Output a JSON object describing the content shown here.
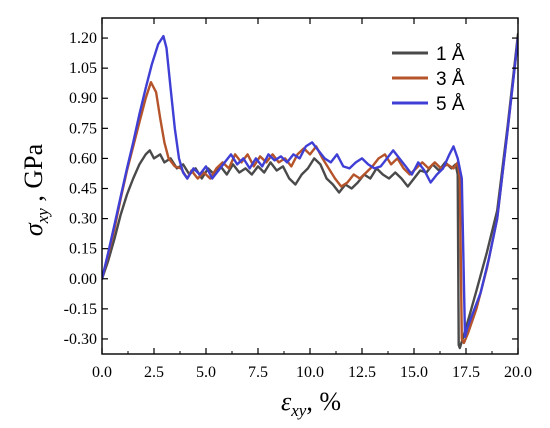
{
  "chart_data": {
    "type": "line",
    "xlabel_symbol": "ε",
    "xlabel_sub": "xy",
    "xlabel_rest": ", %",
    "ylabel_symbol": "σ",
    "ylabel_sub": "xy",
    "ylabel_rest": " ,  GPa",
    "xlim": [
      0,
      20
    ],
    "ylim": [
      -0.375,
      1.3
    ],
    "xticks": [
      0,
      2.5,
      5,
      7.5,
      10,
      12.5,
      15,
      17.5,
      20
    ],
    "xtick_labels": [
      "0.0",
      "2.5",
      "5.0",
      "7.5",
      "10.0",
      "12.5",
      "15.0",
      "17.5",
      "20.0"
    ],
    "yticks": [
      -0.3,
      -0.15,
      0,
      0.15,
      0.3,
      0.45,
      0.6,
      0.75,
      0.9,
      1.05,
      1.2
    ],
    "ytick_labels": [
      "-0.30",
      "-0.15",
      "0.00",
      "0.15",
      "0.30",
      "0.45",
      "0.60",
      "0.75",
      "0.90",
      "1.05",
      "1.20"
    ],
    "legend_position": "top-right",
    "series": [
      {
        "name": "1 Å",
        "color": "#4a4a4a",
        "points": [
          [
            0,
            0
          ],
          [
            0.3,
            0.09
          ],
          [
            0.6,
            0.2
          ],
          [
            0.9,
            0.32
          ],
          [
            1.2,
            0.42
          ],
          [
            1.5,
            0.5
          ],
          [
            1.8,
            0.57
          ],
          [
            2.1,
            0.62
          ],
          [
            2.3,
            0.64
          ],
          [
            2.5,
            0.6
          ],
          [
            2.8,
            0.62
          ],
          [
            3.0,
            0.58
          ],
          [
            3.3,
            0.6
          ],
          [
            3.6,
            0.55
          ],
          [
            3.9,
            0.57
          ],
          [
            4.2,
            0.52
          ],
          [
            4.5,
            0.55
          ],
          [
            4.8,
            0.5
          ],
          [
            5.1,
            0.55
          ],
          [
            5.4,
            0.52
          ],
          [
            5.7,
            0.56
          ],
          [
            6.0,
            0.52
          ],
          [
            6.3,
            0.57
          ],
          [
            6.6,
            0.53
          ],
          [
            6.9,
            0.55
          ],
          [
            7.2,
            0.52
          ],
          [
            7.5,
            0.56
          ],
          [
            7.8,
            0.53
          ],
          [
            8.1,
            0.58
          ],
          [
            8.4,
            0.54
          ],
          [
            8.7,
            0.56
          ],
          [
            9.0,
            0.5
          ],
          [
            9.3,
            0.47
          ],
          [
            9.6,
            0.52
          ],
          [
            9.9,
            0.55
          ],
          [
            10.2,
            0.6
          ],
          [
            10.5,
            0.57
          ],
          [
            10.8,
            0.5
          ],
          [
            11.1,
            0.47
          ],
          [
            11.4,
            0.43
          ],
          [
            11.7,
            0.47
          ],
          [
            12.0,
            0.45
          ],
          [
            12.3,
            0.48
          ],
          [
            12.6,
            0.52
          ],
          [
            12.9,
            0.5
          ],
          [
            13.2,
            0.55
          ],
          [
            13.5,
            0.52
          ],
          [
            13.8,
            0.5
          ],
          [
            14.1,
            0.53
          ],
          [
            14.4,
            0.5
          ],
          [
            14.7,
            0.46
          ],
          [
            15.0,
            0.5
          ],
          [
            15.3,
            0.54
          ],
          [
            15.6,
            0.53
          ],
          [
            15.9,
            0.57
          ],
          [
            16.2,
            0.54
          ],
          [
            16.5,
            0.58
          ],
          [
            16.8,
            0.55
          ],
          [
            17.0,
            0.57
          ],
          [
            17.1,
            0.52
          ],
          [
            17.15,
            -0.33
          ],
          [
            17.2,
            -0.345
          ],
          [
            17.4,
            -0.28
          ],
          [
            17.7,
            -0.17
          ],
          [
            18.0,
            -0.06
          ],
          [
            18.5,
            0.13
          ],
          [
            19.0,
            0.34
          ],
          [
            19.5,
            0.76
          ],
          [
            20.0,
            1.22
          ]
        ]
      },
      {
        "name": "3 Å",
        "color": "#b5542a",
        "points": [
          [
            0,
            0
          ],
          [
            0.3,
            0.12
          ],
          [
            0.6,
            0.25
          ],
          [
            0.9,
            0.4
          ],
          [
            1.2,
            0.54
          ],
          [
            1.5,
            0.66
          ],
          [
            1.8,
            0.78
          ],
          [
            2.1,
            0.9
          ],
          [
            2.35,
            0.98
          ],
          [
            2.6,
            0.93
          ],
          [
            2.8,
            0.8
          ],
          [
            3.0,
            0.68
          ],
          [
            3.2,
            0.6
          ],
          [
            3.5,
            0.56
          ],
          [
            3.8,
            0.55
          ],
          [
            4.1,
            0.5
          ],
          [
            4.3,
            0.54
          ],
          [
            4.6,
            0.5
          ],
          [
            4.9,
            0.53
          ],
          [
            5.2,
            0.5
          ],
          [
            5.5,
            0.55
          ],
          [
            5.8,
            0.58
          ],
          [
            6.1,
            0.55
          ],
          [
            6.4,
            0.62
          ],
          [
            6.7,
            0.58
          ],
          [
            7.0,
            0.62
          ],
          [
            7.3,
            0.56
          ],
          [
            7.6,
            0.61
          ],
          [
            7.9,
            0.58
          ],
          [
            8.2,
            0.62
          ],
          [
            8.5,
            0.58
          ],
          [
            8.8,
            0.6
          ],
          [
            9.1,
            0.56
          ],
          [
            9.4,
            0.62
          ],
          [
            9.7,
            0.65
          ],
          [
            10.0,
            0.62
          ],
          [
            10.3,
            0.66
          ],
          [
            10.6,
            0.6
          ],
          [
            10.9,
            0.55
          ],
          [
            11.2,
            0.5
          ],
          [
            11.5,
            0.46
          ],
          [
            11.8,
            0.48
          ],
          [
            12.1,
            0.52
          ],
          [
            12.4,
            0.5
          ],
          [
            12.7,
            0.53
          ],
          [
            13.0,
            0.56
          ],
          [
            13.3,
            0.6
          ],
          [
            13.6,
            0.62
          ],
          [
            13.9,
            0.57
          ],
          [
            14.2,
            0.6
          ],
          [
            14.5,
            0.55
          ],
          [
            14.8,
            0.52
          ],
          [
            15.1,
            0.55
          ],
          [
            15.4,
            0.58
          ],
          [
            15.7,
            0.55
          ],
          [
            16.0,
            0.58
          ],
          [
            16.3,
            0.55
          ],
          [
            16.6,
            0.57
          ],
          [
            16.9,
            0.55
          ],
          [
            17.1,
            0.58
          ],
          [
            17.2,
            0.5
          ],
          [
            17.3,
            -0.3
          ],
          [
            17.4,
            -0.32
          ],
          [
            17.6,
            -0.27
          ],
          [
            18.0,
            -0.15
          ],
          [
            18.5,
            0.05
          ],
          [
            19.0,
            0.3
          ],
          [
            19.5,
            0.74
          ],
          [
            20.0,
            1.2
          ]
        ]
      },
      {
        "name": "5 Å",
        "color": "#3f3fd6",
        "points": [
          [
            0,
            0
          ],
          [
            0.3,
            0.13
          ],
          [
            0.6,
            0.27
          ],
          [
            0.9,
            0.41
          ],
          [
            1.2,
            0.55
          ],
          [
            1.5,
            0.68
          ],
          [
            1.8,
            0.82
          ],
          [
            2.1,
            0.95
          ],
          [
            2.4,
            1.07
          ],
          [
            2.7,
            1.17
          ],
          [
            2.95,
            1.21
          ],
          [
            3.1,
            1.15
          ],
          [
            3.3,
            0.95
          ],
          [
            3.5,
            0.75
          ],
          [
            3.7,
            0.6
          ],
          [
            3.9,
            0.53
          ],
          [
            4.1,
            0.5
          ],
          [
            4.4,
            0.55
          ],
          [
            4.7,
            0.52
          ],
          [
            5.0,
            0.56
          ],
          [
            5.3,
            0.5
          ],
          [
            5.6,
            0.54
          ],
          [
            5.9,
            0.58
          ],
          [
            6.2,
            0.62
          ],
          [
            6.5,
            0.57
          ],
          [
            6.8,
            0.6
          ],
          [
            7.1,
            0.55
          ],
          [
            7.4,
            0.6
          ],
          [
            7.7,
            0.56
          ],
          [
            8.0,
            0.62
          ],
          [
            8.3,
            0.59
          ],
          [
            8.6,
            0.61
          ],
          [
            8.9,
            0.58
          ],
          [
            9.2,
            0.62
          ],
          [
            9.5,
            0.6
          ],
          [
            9.8,
            0.66
          ],
          [
            10.1,
            0.68
          ],
          [
            10.4,
            0.64
          ],
          [
            10.7,
            0.6
          ],
          [
            11.0,
            0.58
          ],
          [
            11.3,
            0.62
          ],
          [
            11.6,
            0.56
          ],
          [
            11.9,
            0.55
          ],
          [
            12.2,
            0.58
          ],
          [
            12.5,
            0.6
          ],
          [
            12.8,
            0.57
          ],
          [
            13.1,
            0.55
          ],
          [
            13.4,
            0.56
          ],
          [
            13.7,
            0.6
          ],
          [
            14.0,
            0.64
          ],
          [
            14.3,
            0.6
          ],
          [
            14.6,
            0.56
          ],
          [
            14.9,
            0.52
          ],
          [
            15.2,
            0.58
          ],
          [
            15.5,
            0.54
          ],
          [
            15.8,
            0.48
          ],
          [
            16.1,
            0.52
          ],
          [
            16.4,
            0.55
          ],
          [
            16.7,
            0.62
          ],
          [
            16.9,
            0.66
          ],
          [
            17.1,
            0.6
          ],
          [
            17.3,
            0.5
          ],
          [
            17.45,
            -0.29
          ],
          [
            17.55,
            -0.25
          ],
          [
            17.8,
            -0.18
          ],
          [
            18.2,
            -0.07
          ],
          [
            18.6,
            0.1
          ],
          [
            19.0,
            0.3
          ],
          [
            19.5,
            0.74
          ],
          [
            20.0,
            1.2
          ]
        ]
      }
    ]
  }
}
